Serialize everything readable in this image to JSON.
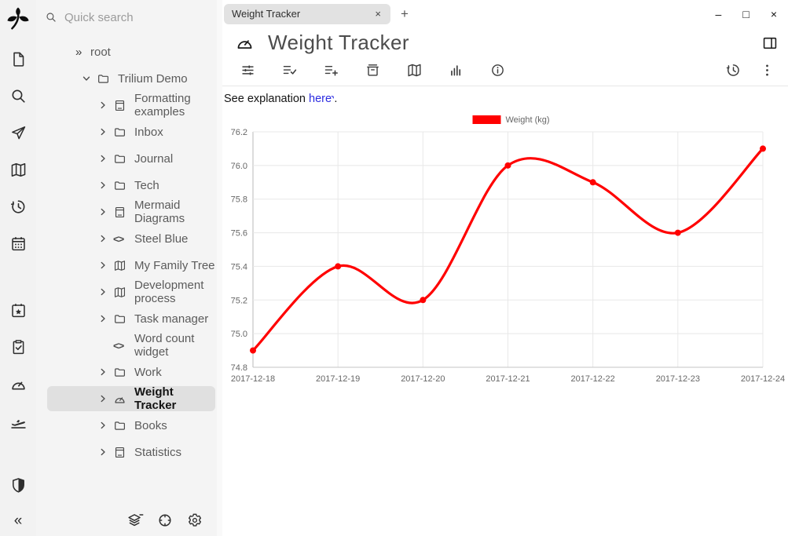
{
  "glyphs": {
    "root_expander": "»",
    "code": "<>",
    "collapse": "«"
  },
  "window_controls": {
    "minimize": "–",
    "maximize": "□",
    "close": "×"
  },
  "tab_bar": {
    "tab_title": "Weight Tracker",
    "tab_close": "×",
    "new_tab": "+"
  },
  "launcher": {
    "groups": [
      [
        "new-note-icon",
        "search-icon",
        "send-icon",
        "map-icon",
        "history-icon",
        "calendar-icon"
      ],
      [
        "calendar-star-icon",
        "clipboard-check-icon",
        "speedometer-icon",
        "plane-takeoff-icon"
      ],
      [
        "shield-icon"
      ]
    ]
  },
  "quick_search": {
    "placeholder": "Quick search"
  },
  "tree": {
    "items": [
      {
        "label": "root",
        "indent": 0,
        "expander": "root",
        "icon": null,
        "selected": false
      },
      {
        "label": "Trilium Demo",
        "indent": 1,
        "expander": "down",
        "icon": "folder-icon",
        "selected": false
      },
      {
        "label": "Formatting examples",
        "indent": 2,
        "expander": "right",
        "icon": "book-icon",
        "selected": false
      },
      {
        "label": "Inbox",
        "indent": 2,
        "expander": "right",
        "icon": "folder-icon",
        "selected": false
      },
      {
        "label": "Journal",
        "indent": 2,
        "expander": "right",
        "icon": "folder-icon",
        "selected": false
      },
      {
        "label": "Tech",
        "indent": 2,
        "expander": "right",
        "icon": "folder-icon",
        "selected": false
      },
      {
        "label": "Mermaid Diagrams",
        "indent": 2,
        "expander": "right",
        "icon": "book-icon",
        "selected": false
      },
      {
        "label": "Steel Blue",
        "indent": 2,
        "expander": "right",
        "icon": "code-icon",
        "selected": false
      },
      {
        "label": "My Family Tree",
        "indent": 2,
        "expander": "right",
        "icon": "map-icon",
        "selected": false
      },
      {
        "label": "Development process",
        "indent": 2,
        "expander": "right",
        "icon": "map-icon",
        "selected": false
      },
      {
        "label": "Task manager",
        "indent": 2,
        "expander": "right",
        "icon": "folder-icon",
        "selected": false
      },
      {
        "label": "Word count widget",
        "indent": 2,
        "expander": "none",
        "icon": "code-icon",
        "selected": false
      },
      {
        "label": "Work",
        "indent": 2,
        "expander": "right",
        "icon": "folder-icon",
        "selected": false
      },
      {
        "label": "Weight Tracker",
        "indent": 2,
        "expander": "right",
        "icon": "speedometer-icon",
        "selected": true
      },
      {
        "label": "Books",
        "indent": 2,
        "expander": "right",
        "icon": "folder-icon",
        "selected": false
      },
      {
        "label": "Statistics",
        "indent": 2,
        "expander": "right",
        "icon": "book-icon",
        "selected": false
      }
    ],
    "footer_icons": [
      "layers-minus-icon",
      "crosshair-icon",
      "gear-icon"
    ]
  },
  "note_header": {
    "title": "Weight Tracker",
    "icon": "speedometer-icon"
  },
  "ribbon": {
    "tabs": [
      "sliders-icon",
      "list-check-icon",
      "list-plus-icon",
      "archive-icon",
      "map-icon",
      "bar-chart-icon",
      "info-icon"
    ],
    "right": [
      "history-icon",
      "kebab-icon"
    ]
  },
  "content": {
    "text_before": "See explanation ",
    "link_text": "here",
    "link_arrow": "›",
    "text_after": ".",
    "link_color": "#2b2be0"
  },
  "chart_data": {
    "type": "line",
    "title": "",
    "categories": [
      "2017-12-18",
      "2017-12-19",
      "2017-12-20",
      "2017-12-21",
      "2017-12-22",
      "2017-12-23",
      "2017-12-24"
    ],
    "series": [
      {
        "name": "Weight (kg)",
        "color": "#ff0000",
        "values": [
          74.9,
          75.4,
          75.2,
          76.0,
          75.9,
          75.6,
          76.1
        ]
      }
    ],
    "xlabel": "",
    "ylabel": "",
    "ylim": [
      74.8,
      76.2
    ],
    "ytick_step": 0.2,
    "smooth": true,
    "grid": true,
    "legend_position": "top-center",
    "point_markers": true
  }
}
